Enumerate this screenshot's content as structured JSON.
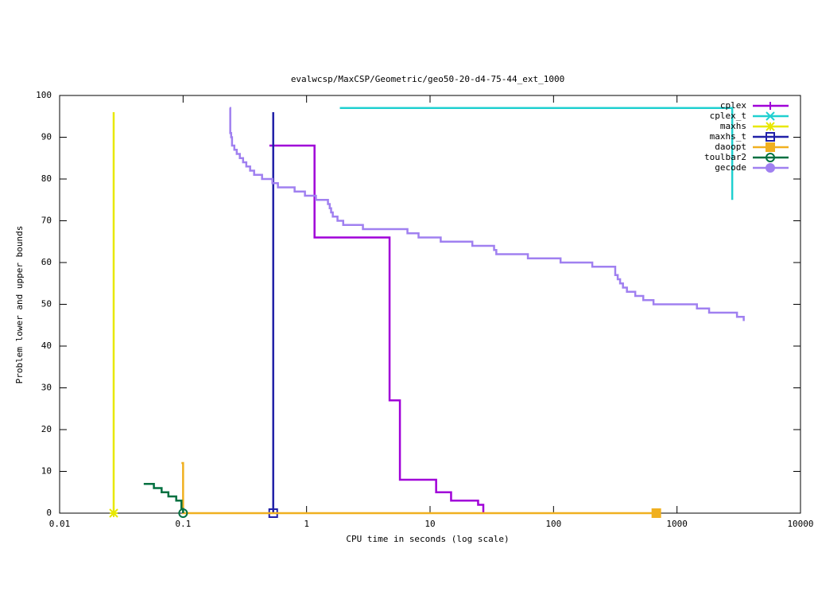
{
  "chart_data": {
    "type": "step",
    "title": "evalwcsp/MaxCSP/Geometric/geo50-20-d4-75-44_ext_1000",
    "x_label": "CPU time in seconds (log scale)",
    "y_label": "Problem lower and upper bounds",
    "x_log": true,
    "xlim": [
      0.01,
      10000
    ],
    "xticks": [
      0.01,
      0.1,
      1,
      10,
      100,
      1000,
      10000
    ],
    "ylim": [
      0,
      100
    ],
    "yticks": [
      0,
      10,
      20,
      30,
      40,
      50,
      60,
      70,
      80,
      90,
      100
    ],
    "legend": "top-right",
    "series": [
      {
        "name": "cplex",
        "color": "#a000d8",
        "marker": "plus",
        "end_marker": false,
        "x": [
          0.5,
          1.16,
          4.7,
          5.7,
          11.2,
          14.8,
          24.5,
          27
        ],
        "values": [
          88,
          66,
          27,
          8,
          5,
          3,
          2,
          0
        ]
      },
      {
        "name": "cplex_t",
        "color": "#20d0d0",
        "marker": "cross",
        "end_marker": false,
        "x": [
          1.86,
          2800
        ],
        "values": [
          97,
          75
        ]
      },
      {
        "name": "maxhs",
        "color": "#e8e800",
        "marker": "star",
        "end_marker": true,
        "x": [
          0.0274,
          0.0274
        ],
        "values": [
          96,
          0
        ]
      },
      {
        "name": "maxhs_t",
        "color": "#2020a8",
        "marker": "square",
        "end_marker": true,
        "x": [
          0.537,
          0.537
        ],
        "values": [
          96,
          0
        ]
      },
      {
        "name": "daoopt",
        "color": "#f0b020",
        "marker": "filled-square",
        "end_marker": true,
        "x": [
          0.097,
          0.1,
          680
        ],
        "values": [
          12,
          0,
          0
        ]
      },
      {
        "name": "toulbar2",
        "color": "#007040",
        "marker": "circle",
        "end_marker": true,
        "x": [
          0.048,
          0.058,
          0.067,
          0.076,
          0.088,
          0.097,
          0.1
        ],
        "values": [
          7,
          6,
          5,
          4,
          3,
          1,
          0
        ]
      },
      {
        "name": "gecode",
        "color": "#a080f0",
        "marker": "filled-circle",
        "end_marker": false,
        "x": [
          0.238,
          0.241,
          0.245,
          0.249,
          0.26,
          0.272,
          0.288,
          0.306,
          0.325,
          0.349,
          0.376,
          0.436,
          0.529,
          0.586,
          0.8,
          0.97,
          1.19,
          1.49,
          1.54,
          1.58,
          1.63,
          1.78,
          1.98,
          2.86,
          6.56,
          8.07,
          12.2,
          22,
          33,
          34.4,
          62,
          114,
          206,
          316,
          331,
          346,
          365,
          393,
          459,
          533,
          645,
          1450,
          1820,
          3060,
          3470
        ],
        "values": [
          97,
          91,
          90,
          88,
          87,
          86,
          85,
          84,
          83,
          82,
          81,
          80,
          79,
          78,
          77,
          76,
          75,
          74,
          73,
          72,
          71,
          70,
          69,
          68,
          67,
          66,
          65,
          64,
          63,
          62,
          61,
          60,
          59,
          57,
          56,
          55,
          54,
          53,
          52,
          51,
          50,
          49,
          48,
          47,
          46
        ]
      }
    ]
  }
}
